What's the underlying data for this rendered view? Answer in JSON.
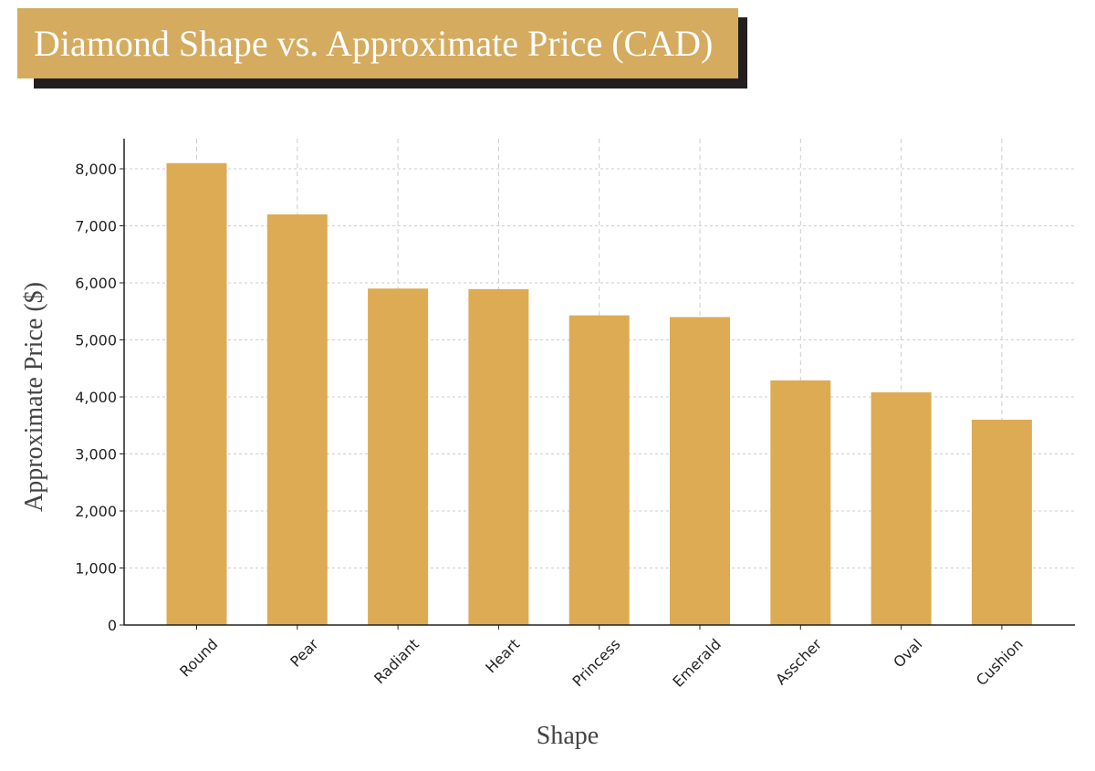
{
  "chart_data": {
    "type": "bar",
    "title": "Diamond Shape vs. Approximate Price (CAD)",
    "xlabel": "Shape",
    "ylabel": "Approximate Price ($)",
    "categories": [
      "Round",
      "Pear",
      "Radiant",
      "Heart",
      "Princess",
      "Emerald",
      "Asscher",
      "Oval",
      "Cushion"
    ],
    "values": [
      8100,
      7200,
      5900,
      5890,
      5430,
      5400,
      4290,
      4080,
      3600
    ],
    "ylim": [
      0,
      8500
    ],
    "yticks": [
      0,
      1000,
      2000,
      3000,
      4000,
      5000,
      6000,
      7000,
      8000
    ],
    "ytick_labels": [
      "0",
      "1,000",
      "2,000",
      "3,000",
      "4,000",
      "5,000",
      "6,000",
      "7,000",
      "8,000"
    ],
    "grid": true,
    "bar_color": "#dcab54",
    "title_bg_color": "#d4ab5f",
    "title_shadow_color": "#231f20"
  }
}
